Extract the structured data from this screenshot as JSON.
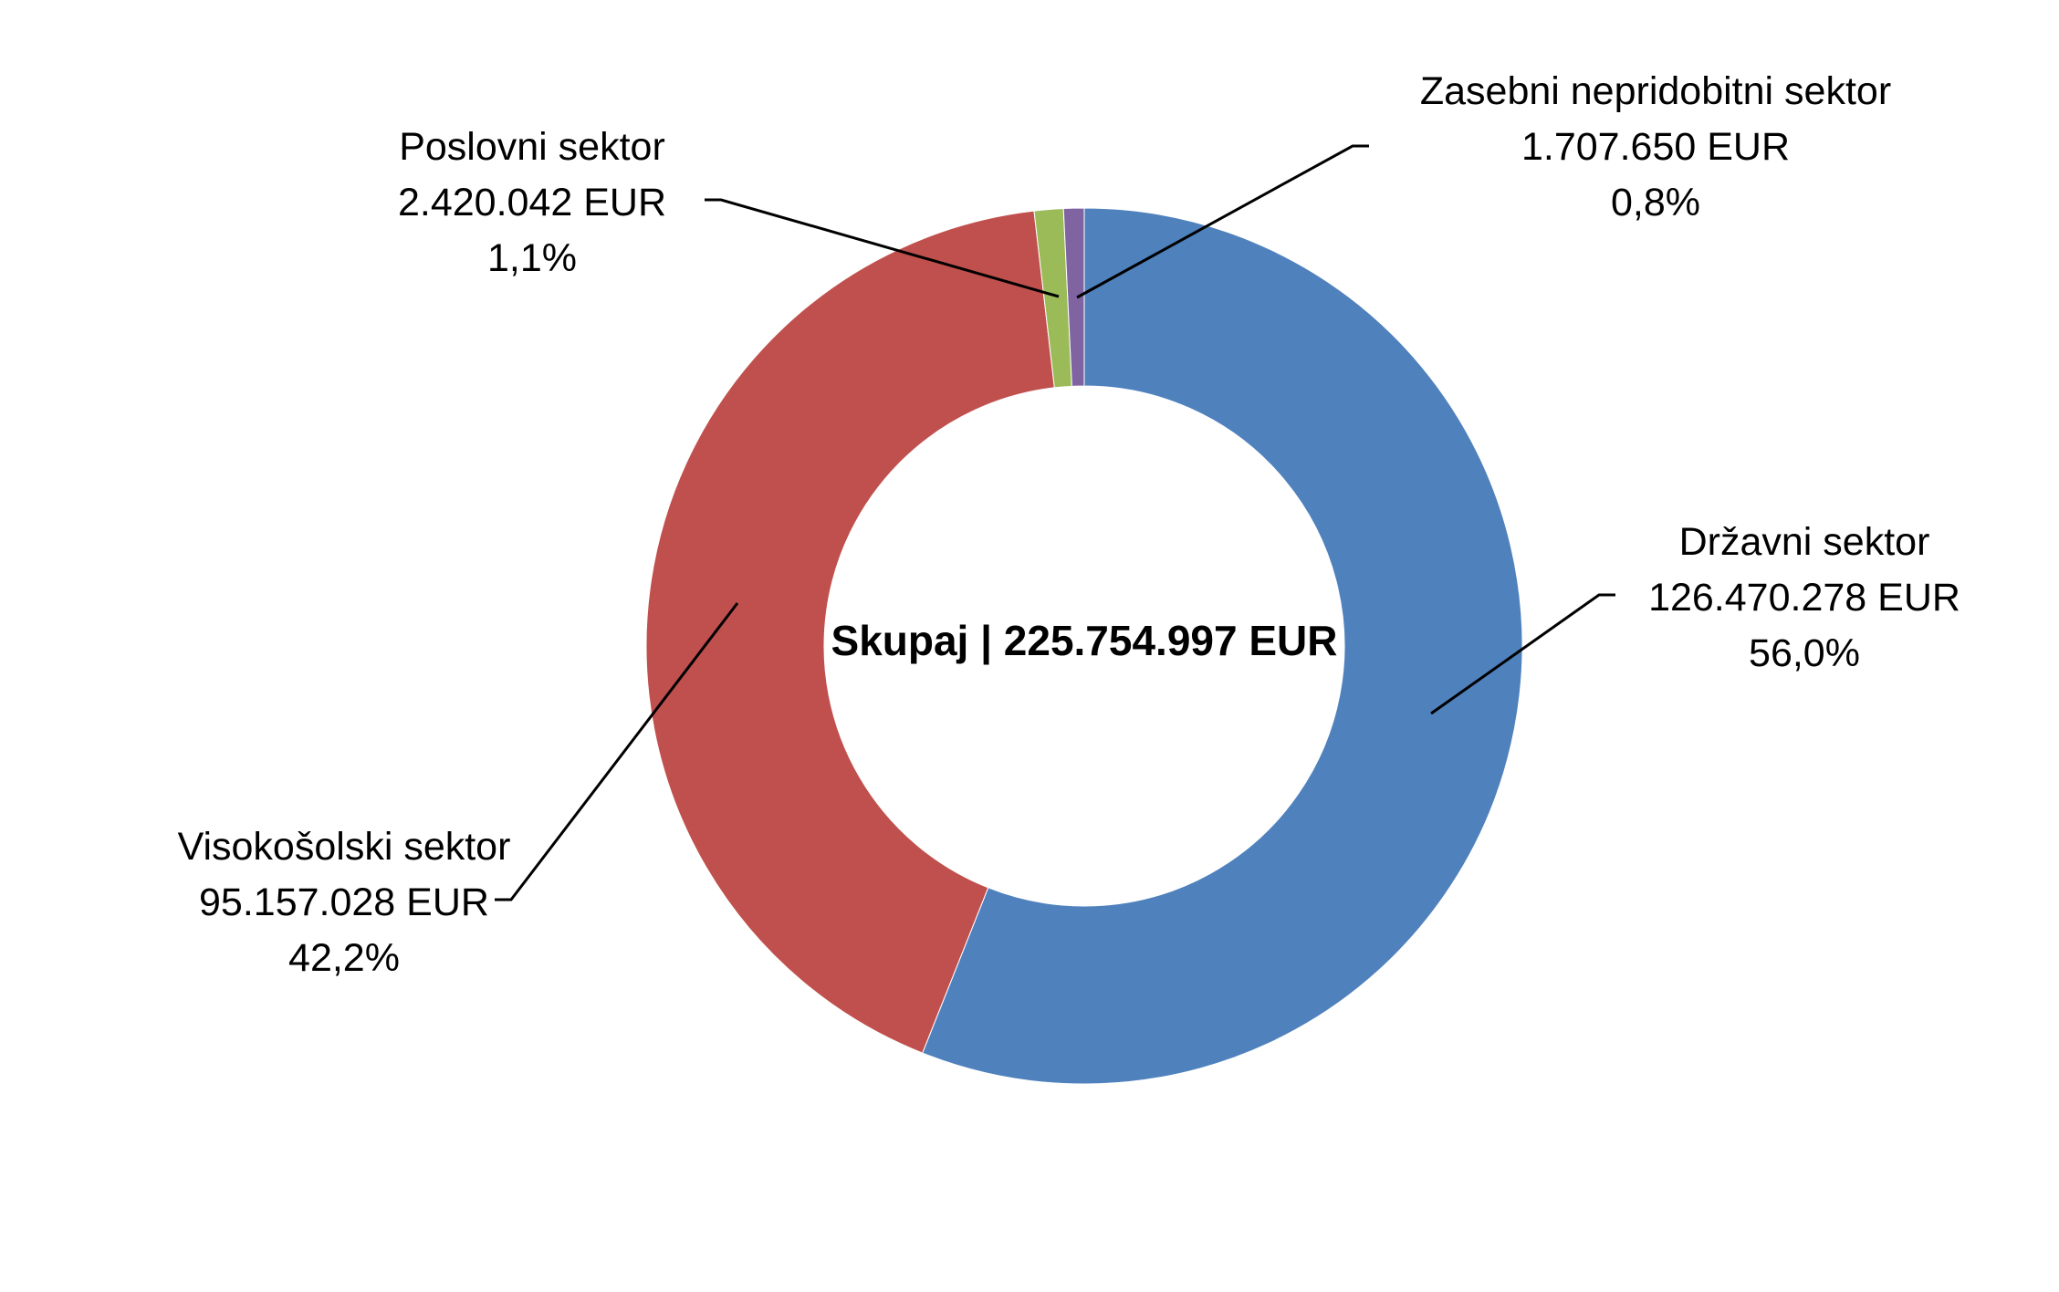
{
  "chart_data": {
    "type": "pie",
    "variant": "donut",
    "center_label": "Skupaj | 225.754.997 EUR",
    "slices": [
      {
        "name": "Državni sektor",
        "value": 126470278,
        "value_label": "126.470.278 EUR",
        "percent": 56.0,
        "percent_label": "56,0%",
        "color": "#4F81BD"
      },
      {
        "name": "Visokošolski sektor",
        "value": 95157028,
        "value_label": "95.157.028 EUR",
        "percent": 42.2,
        "percent_label": "42,2%",
        "color": "#C0504D"
      },
      {
        "name": "Poslovni sektor",
        "value": 2420042,
        "value_label": "2.420.042 EUR",
        "percent": 1.1,
        "percent_label": "1,1%",
        "color": "#9BBB59"
      },
      {
        "name": "Zasebni nepridobitni sektor",
        "value": 1707650,
        "value_label": "1.707.650 EUR",
        "percent": 0.8,
        "percent_label": "0,8%",
        "color": "#8064A2"
      }
    ],
    "legend": "none",
    "start_angle": "12 o'clock, clockwise"
  }
}
